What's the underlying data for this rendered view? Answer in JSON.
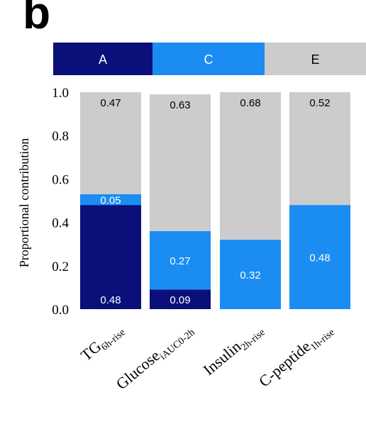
{
  "panel_label": "b",
  "colors": {
    "A": "#0a0f7a",
    "C": "#1b8cf2",
    "E": "#cccccc",
    "legend_text_dark_bg": "#ffffff",
    "legend_text_light_bg": "#000000"
  },
  "chart_data": {
    "type": "bar",
    "stacked": true,
    "title": "",
    "ylabel": "Proportional contribution",
    "ylim": [
      0,
      1.0
    ],
    "yticks": [
      "0.0",
      "0.2",
      "0.4",
      "0.6",
      "0.8",
      "1.0"
    ],
    "legend": {
      "placement": "top",
      "entries": [
        "A",
        "C",
        "E"
      ]
    },
    "categories": [
      {
        "main": "TG",
        "sub": "6h-rise"
      },
      {
        "main": "Glucose",
        "sub": "iAUC0-2h"
      },
      {
        "main": "Insulin",
        "sub": "2h-rise"
      },
      {
        "main": "C-peptide",
        "sub": "1h-rise"
      }
    ],
    "series": [
      {
        "name": "A",
        "values": [
          0.48,
          0.09,
          0.0,
          0.0
        ],
        "labels": [
          "0.48",
          "0.09",
          "",
          ""
        ]
      },
      {
        "name": "C",
        "values": [
          0.05,
          0.27,
          0.32,
          0.48
        ],
        "labels": [
          "0.05",
          "0.27",
          "0.32",
          "0.48"
        ]
      },
      {
        "name": "E",
        "values": [
          0.47,
          0.63,
          0.68,
          0.52
        ],
        "labels": [
          "0.47",
          "0.63",
          "0.68",
          "0.52"
        ]
      }
    ]
  }
}
